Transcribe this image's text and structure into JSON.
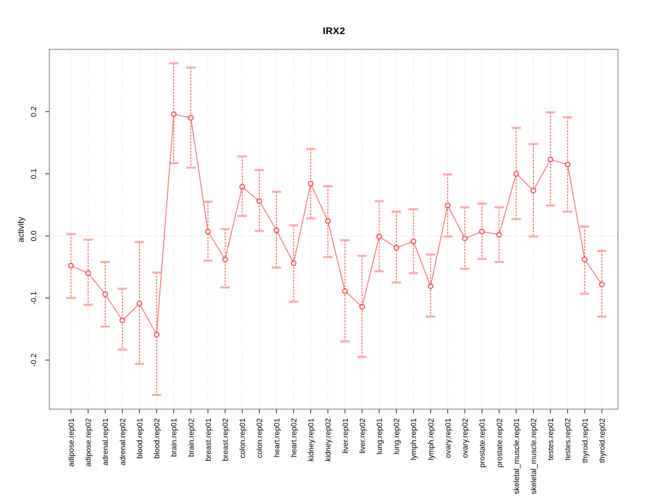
{
  "page": {
    "background": "#ffffff"
  },
  "chart_data": {
    "type": "line",
    "title": "IRX2",
    "xlabel": "",
    "ylabel": "activity",
    "legend_position": "none",
    "marker": "open-circle",
    "error_bars": true,
    "grid": {
      "vertical_dotted_per_category": true,
      "horizontal_dotted_at_zero": true
    },
    "ylim": [
      -0.28,
      0.3
    ],
    "yticks": {
      "values": [
        0.2,
        0.1,
        0.0,
        -0.1,
        -0.2
      ],
      "labels": [
        "0.2",
        "0.1",
        "0.0",
        "-0.1",
        "-0.2"
      ]
    },
    "categories": [
      "adipose.rep01",
      "adipose.rep02",
      "adrenal.rep01",
      "adrenal.rep02",
      "blood.rep01",
      "blood.rep02",
      "brain.rep01",
      "brain.rep02",
      "breast.rep01",
      "breast.rep02",
      "colon.rep01",
      "colon.rep02",
      "heart.rep01",
      "heart.rep02",
      "kidney.rep01",
      "kidney.rep02",
      "liver.rep01",
      "liver.rep02",
      "lung.rep01",
      "lung.rep02",
      "lymph.rep01",
      "lymph.rep02",
      "ovary.rep01",
      "ovary.rep02",
      "prostate.rep01",
      "prostate.rep02",
      "skeletal_muscle.rep01",
      "skeletal_muscle.rep02",
      "testes.rep01",
      "testes.rep02",
      "thyroid.rep01",
      "thyroid.rep02"
    ],
    "series": [
      {
        "name": "IRX2 activity",
        "values": [
          -0.048,
          -0.06,
          -0.094,
          -0.136,
          -0.109,
          -0.159,
          0.196,
          0.19,
          0.007,
          -0.038,
          0.079,
          0.056,
          0.009,
          -0.044,
          0.084,
          0.024,
          -0.089,
          -0.114,
          -0.001,
          -0.019,
          -0.009,
          -0.081,
          0.049,
          -0.004,
          0.007,
          0.002,
          0.1,
          0.073,
          0.123,
          0.115,
          -0.038,
          -0.078
        ],
        "error_low": [
          -0.1,
          -0.111,
          -0.146,
          -0.183,
          -0.206,
          -0.256,
          0.117,
          0.11,
          -0.04,
          -0.083,
          0.032,
          0.008,
          -0.051,
          -0.106,
          0.028,
          -0.034,
          -0.17,
          -0.195,
          -0.057,
          -0.075,
          -0.06,
          -0.13,
          -0.001,
          -0.053,
          -0.037,
          -0.042,
          0.027,
          -0.001,
          0.049,
          0.039,
          -0.093,
          -0.13
        ],
        "error_high": [
          0.003,
          -0.006,
          -0.042,
          -0.085,
          -0.01,
          -0.059,
          0.278,
          0.271,
          0.055,
          0.011,
          0.128,
          0.106,
          0.071,
          0.017,
          0.14,
          0.08,
          -0.007,
          -0.032,
          0.056,
          0.039,
          0.043,
          -0.03,
          0.099,
          0.046,
          0.052,
          0.046,
          0.174,
          0.148,
          0.199,
          0.191,
          0.015,
          -0.024
        ]
      }
    ],
    "colors": {
      "point": "#ee3b3b",
      "error_line": "#f25252",
      "cap": "#ff9d9d",
      "segment": "#f87474",
      "grid": "#dadada",
      "zero_line": "#cccccc",
      "box": "#878787",
      "tick": "#404040",
      "text": "#000000"
    }
  }
}
